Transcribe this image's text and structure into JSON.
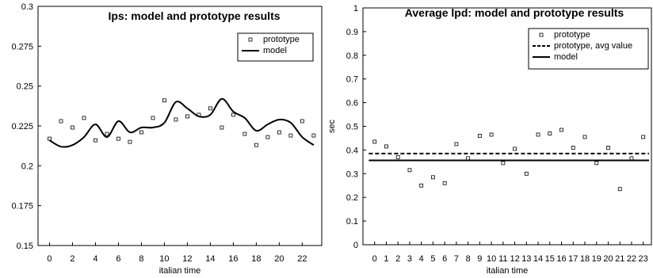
{
  "chart_data": [
    {
      "type": "line",
      "title": "Ips: model and prototype results",
      "xlabel": "italian time",
      "ylabel": "",
      "xlim": [
        -1,
        23.7
      ],
      "ylim": [
        0.15,
        0.3
      ],
      "x_ticks": [
        0,
        2,
        4,
        6,
        8,
        10,
        12,
        14,
        16,
        18,
        20,
        22
      ],
      "y_ticks": [
        0.15,
        0.175,
        0.2,
        0.225,
        0.25,
        0.275,
        0.3
      ],
      "y_tick_labels": [
        "0.15",
        "0.175",
        "0.2",
        "0.225",
        "0.25",
        "0.275",
        "0.3"
      ],
      "legend": "top-right",
      "series": [
        {
          "name": "prototype",
          "style": "markers",
          "x": [
            0,
            1,
            2,
            3,
            4,
            5,
            6,
            7,
            8,
            9,
            10,
            11,
            12,
            13,
            14,
            15,
            16,
            17,
            18,
            19,
            20,
            21,
            22,
            23
          ],
          "y": [
            0.217,
            0.228,
            0.224,
            0.23,
            0.216,
            0.22,
            0.217,
            0.215,
            0.221,
            0.23,
            0.241,
            0.229,
            0.231,
            0.232,
            0.236,
            0.224,
            0.232,
            0.22,
            0.213,
            0.218,
            0.221,
            0.219,
            0.228,
            0.219
          ]
        },
        {
          "name": "model",
          "style": "solid",
          "x": [
            0,
            1,
            2,
            3,
            4,
            5,
            6,
            7,
            8,
            9,
            10,
            11,
            12,
            13,
            14,
            15,
            16,
            17,
            18,
            19,
            20,
            21,
            22,
            23
          ],
          "y": [
            0.216,
            0.212,
            0.213,
            0.218,
            0.226,
            0.218,
            0.228,
            0.221,
            0.224,
            0.224,
            0.227,
            0.24,
            0.236,
            0.231,
            0.232,
            0.242,
            0.234,
            0.23,
            0.222,
            0.226,
            0.229,
            0.227,
            0.218,
            0.213
          ]
        }
      ]
    },
    {
      "type": "line",
      "title": "Average lpd: model and prototype results",
      "xlabel": "italian time",
      "ylabel": "sec",
      "xlim": [
        -1,
        23.7
      ],
      "ylim": [
        0,
        1
      ],
      "x_ticks": [
        0,
        1,
        2,
        3,
        4,
        5,
        6,
        7,
        8,
        9,
        10,
        11,
        12,
        13,
        14,
        15,
        16,
        17,
        18,
        19,
        20,
        21,
        22,
        23
      ],
      "y_ticks": [
        0,
        0.1,
        0.2,
        0.3,
        0.4,
        0.5,
        0.6,
        0.7,
        0.8,
        0.9,
        1
      ],
      "y_tick_labels": [
        "0",
        "0.1",
        "0.2",
        "0.3",
        "0.4",
        "0.5",
        "0.6",
        "0.7",
        "0.8",
        "0.9",
        "1"
      ],
      "legend": "top-right",
      "series": [
        {
          "name": "prototype",
          "style": "markers",
          "x": [
            0,
            1,
            2,
            3,
            4,
            5,
            6,
            7,
            8,
            9,
            10,
            11,
            12,
            13,
            14,
            15,
            16,
            17,
            18,
            19,
            20,
            21,
            22,
            23
          ],
          "y": [
            0.435,
            0.415,
            0.37,
            0.315,
            0.25,
            0.285,
            0.26,
            0.425,
            0.365,
            0.46,
            0.465,
            0.345,
            0.405,
            0.3,
            0.465,
            0.47,
            0.485,
            0.41,
            0.455,
            0.345,
            0.41,
            0.235,
            0.365,
            0.455
          ]
        },
        {
          "name": "prototype, avg value",
          "style": "dashed",
          "x": [
            -0.5,
            23.5
          ],
          "y": [
            0.385,
            0.385
          ]
        },
        {
          "name": "model",
          "style": "solid",
          "x": [
            -0.5,
            23.5
          ],
          "y": [
            0.356,
            0.356
          ]
        }
      ]
    }
  ]
}
